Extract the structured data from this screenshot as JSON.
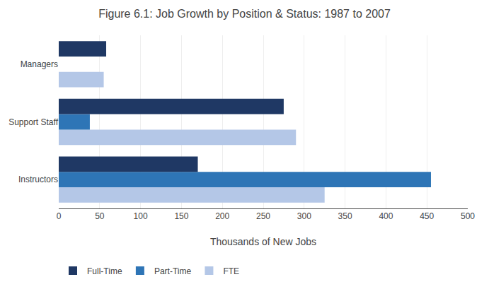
{
  "chart_data": {
    "type": "bar",
    "orientation": "horizontal",
    "title": "Figure 6.1: Job Growth by Position & Status: 1987 to 2007",
    "xlabel": "Thousands of New Jobs",
    "categories": [
      "Instructors",
      "Support Staff",
      "Managers"
    ],
    "series": [
      {
        "name": "Full-Time",
        "color": "#1F3864",
        "values": [
          170,
          275,
          58
        ]
      },
      {
        "name": "Part-Time",
        "color": "#2E75B6",
        "values": [
          455,
          38,
          0
        ]
      },
      {
        "name": "FTE",
        "color": "#B4C7E7",
        "values": [
          325,
          290,
          55
        ]
      }
    ],
    "xlim": [
      0,
      500
    ],
    "xticks": [
      0,
      50,
      100,
      150,
      200,
      250,
      300,
      350,
      400,
      450,
      500
    ],
    "grid": true,
    "legend": "bottom"
  }
}
